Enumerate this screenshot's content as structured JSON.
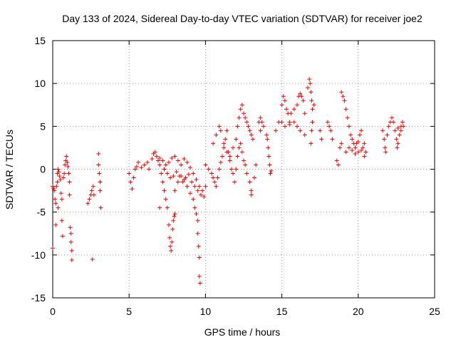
{
  "chart_data": {
    "type": "scatter",
    "title": "Day 133 of 2024, Sidereal Day-to-day VTEC variation (SDTVAR) for receiver joe2",
    "xlabel": "GPS time / hours",
    "ylabel": "SDTVAR / TECUs",
    "xlim": [
      0,
      25
    ],
    "ylim": [
      -15,
      15
    ],
    "xticks": [
      "0",
      "5",
      "10",
      "15",
      "20",
      "25"
    ],
    "yticks": [
      "-15",
      "-10",
      "-5",
      "0",
      "5",
      "10",
      "15"
    ],
    "grid": true,
    "marker": "+",
    "color": "#ff0000",
    "series": [
      {
        "name": "SDTVAR",
        "points": [
          [
            0.0,
            -2.0
          ],
          [
            0.05,
            -2.2
          ],
          [
            0.1,
            -2.5
          ],
          [
            0.15,
            -3.5
          ],
          [
            0.2,
            -4.0
          ],
          [
            0.2,
            -6.5
          ],
          [
            0.25,
            -2.0
          ],
          [
            0.3,
            -1.5
          ],
          [
            0.3,
            -0.5
          ],
          [
            0.35,
            0.0
          ],
          [
            0.35,
            -4.5
          ],
          [
            0.4,
            -0.3
          ],
          [
            0.45,
            -0.8
          ],
          [
            0.5,
            -1.2
          ],
          [
            0.55,
            -2.8
          ],
          [
            0.6,
            -3.5
          ],
          [
            0.6,
            -6.0
          ],
          [
            0.65,
            -7.8
          ],
          [
            0.7,
            -1.0
          ],
          [
            0.75,
            -0.5
          ],
          [
            0.8,
            0.5
          ],
          [
            0.85,
            1.0
          ],
          [
            0.9,
            1.5
          ],
          [
            0.95,
            0.8
          ],
          [
            1.0,
            0.3
          ],
          [
            1.05,
            -0.5
          ],
          [
            1.1,
            -1.5
          ],
          [
            1.1,
            -3.0
          ],
          [
            1.15,
            -6.8
          ],
          [
            1.2,
            -7.5
          ],
          [
            1.2,
            -8.5
          ],
          [
            1.25,
            -9.5
          ],
          [
            1.25,
            -10.6
          ],
          [
            0.0,
            -9.2
          ],
          [
            2.3,
            -4.0
          ],
          [
            2.4,
            -3.5
          ],
          [
            2.5,
            -3.0
          ],
          [
            2.55,
            -2.5
          ],
          [
            2.6,
            -10.5
          ],
          [
            2.65,
            -2.0
          ],
          [
            2.7,
            -3.0
          ],
          [
            3.0,
            1.8
          ],
          [
            3.0,
            0.5
          ],
          [
            3.05,
            -0.5
          ],
          [
            3.1,
            -1.5
          ],
          [
            3.1,
            -2.5
          ],
          [
            3.15,
            -4.5
          ],
          [
            5.0,
            -0.5
          ],
          [
            5.1,
            -1.5
          ],
          [
            5.2,
            -2.3
          ],
          [
            5.3,
            -1.0
          ],
          [
            5.4,
            0.0
          ],
          [
            5.5,
            0.3
          ],
          [
            5.6,
            0.8
          ],
          [
            5.8,
            0.2
          ],
          [
            6.0,
            0.5
          ],
          [
            6.2,
            0.8
          ],
          [
            6.3,
            0.0
          ],
          [
            6.5,
            1.2
          ],
          [
            6.6,
            1.8
          ],
          [
            6.7,
            2.0
          ],
          [
            6.8,
            1.5
          ],
          [
            6.9,
            1.0
          ],
          [
            7.0,
            0.5
          ],
          [
            7.1,
            -0.5
          ],
          [
            7.2,
            -1.5
          ],
          [
            7.3,
            -2.5
          ],
          [
            7.4,
            -3.5
          ],
          [
            7.5,
            -4.5
          ],
          [
            7.6,
            -6.5
          ],
          [
            7.65,
            -8.0
          ],
          [
            7.7,
            -9.0
          ],
          [
            7.75,
            -9.5
          ],
          [
            7.8,
            -8.5
          ],
          [
            7.85,
            -7.0
          ],
          [
            7.9,
            -6.0
          ],
          [
            7.95,
            -5.5
          ],
          [
            8.0,
            -5.2
          ],
          [
            7.0,
            -4.5
          ],
          [
            7.0,
            1.3
          ],
          [
            7.2,
            1.0
          ],
          [
            7.4,
            0.5
          ],
          [
            7.6,
            0.8
          ],
          [
            7.8,
            1.3
          ],
          [
            8.0,
            1.5
          ],
          [
            8.2,
            1.0
          ],
          [
            8.4,
            0.5
          ],
          [
            8.6,
            1.2
          ],
          [
            8.8,
            0.8
          ],
          [
            9.0,
            0.2
          ],
          [
            9.2,
            -0.5
          ],
          [
            9.4,
            -1.2
          ],
          [
            9.6,
            -2.0
          ],
          [
            9.8,
            -2.5
          ],
          [
            8.0,
            -2.5
          ],
          [
            8.2,
            -1.5
          ],
          [
            8.4,
            -0.8
          ],
          [
            8.6,
            -1.2
          ],
          [
            8.8,
            -2.0
          ],
          [
            9.0,
            -2.8
          ],
          [
            9.2,
            -3.5
          ],
          [
            9.3,
            -4.5
          ],
          [
            9.4,
            -5.2
          ],
          [
            9.5,
            -6.0
          ],
          [
            9.5,
            -7.5
          ],
          [
            9.55,
            -9.0
          ],
          [
            9.6,
            -10.3
          ],
          [
            9.6,
            -12.5
          ],
          [
            9.65,
            -13.3
          ],
          [
            7.3,
            0.0
          ],
          [
            7.5,
            -0.5
          ],
          [
            7.7,
            -1.0
          ],
          [
            7.9,
            -0.8
          ],
          [
            8.1,
            -0.3
          ],
          [
            8.3,
            -0.8
          ],
          [
            8.5,
            -1.5
          ],
          [
            8.7,
            -1.0
          ],
          [
            8.9,
            -0.6
          ],
          [
            9.1,
            -1.5
          ],
          [
            9.3,
            -2.0
          ],
          [
            9.5,
            -2.5
          ],
          [
            9.7,
            -3.0
          ],
          [
            9.9,
            -3.2
          ],
          [
            10.0,
            -2.0
          ],
          [
            10.0,
            0.5
          ],
          [
            10.2,
            0.0
          ],
          [
            10.4,
            -0.5
          ],
          [
            10.5,
            -1.0
          ],
          [
            10.6,
            -1.5
          ],
          [
            10.7,
            -2.0
          ],
          [
            10.8,
            -1.0
          ],
          [
            10.9,
            0.0
          ],
          [
            11.0,
            0.8
          ],
          [
            11.1,
            1.5
          ],
          [
            11.2,
            2.5
          ],
          [
            11.3,
            3.5
          ],
          [
            11.4,
            4.5
          ],
          [
            11.5,
            2.0
          ],
          [
            11.6,
            1.0
          ],
          [
            11.7,
            0.0
          ],
          [
            11.8,
            -0.5
          ],
          [
            11.9,
            -1.5
          ],
          [
            10.5,
            3.0
          ],
          [
            10.7,
            4.0
          ],
          [
            10.9,
            5.0
          ],
          [
            11.0,
            4.5
          ],
          [
            11.2,
            3.0
          ],
          [
            11.4,
            2.0
          ],
          [
            11.6,
            1.5
          ],
          [
            11.8,
            2.5
          ],
          [
            12.0,
            3.5
          ],
          [
            12.1,
            5.0
          ],
          [
            12.2,
            6.0
          ],
          [
            12.3,
            7.0
          ],
          [
            12.4,
            7.5
          ],
          [
            12.5,
            6.5
          ],
          [
            12.6,
            6.0
          ],
          [
            12.7,
            5.5
          ],
          [
            12.8,
            5.0
          ],
          [
            12.9,
            4.5
          ],
          [
            13.0,
            4.0
          ],
          [
            13.1,
            3.5
          ],
          [
            12.0,
            0.0
          ],
          [
            12.1,
            1.5
          ],
          [
            12.2,
            2.5
          ],
          [
            12.3,
            3.0
          ],
          [
            12.4,
            2.0
          ],
          [
            12.5,
            1.0
          ],
          [
            12.6,
            0.5
          ],
          [
            12.7,
            -0.5
          ],
          [
            12.9,
            -1.5
          ],
          [
            13.0,
            -2.5
          ],
          [
            13.0,
            -3.0
          ],
          [
            13.2,
            -1.0
          ],
          [
            13.3,
            0.5
          ],
          [
            13.5,
            5.5
          ],
          [
            13.6,
            6.0
          ],
          [
            13.7,
            5.5
          ],
          [
            13.8,
            5.0
          ],
          [
            13.6,
            4.5
          ],
          [
            14.0,
            4.0
          ],
          [
            14.05,
            3.5
          ],
          [
            14.1,
            2.5
          ],
          [
            14.15,
            1.5
          ],
          [
            14.2,
            0.5
          ],
          [
            14.25,
            -0.5
          ],
          [
            14.3,
            -0.2
          ],
          [
            14.6,
            4.5
          ],
          [
            14.8,
            5.5
          ],
          [
            15.0,
            7.5
          ],
          [
            15.1,
            8.5
          ],
          [
            15.2,
            8.0
          ],
          [
            15.3,
            7.0
          ],
          [
            15.4,
            6.5
          ],
          [
            15.5,
            5.5
          ],
          [
            15.6,
            6.5
          ],
          [
            15.8,
            7.0
          ],
          [
            16.0,
            7.5
          ],
          [
            16.1,
            8.5
          ],
          [
            16.2,
            8.8
          ],
          [
            16.3,
            8.5
          ],
          [
            16.4,
            8.0
          ],
          [
            15.0,
            5.5
          ],
          [
            15.2,
            5.0
          ],
          [
            15.5,
            5.2
          ],
          [
            15.8,
            5.5
          ],
          [
            16.0,
            5.0
          ],
          [
            16.2,
            4.5
          ],
          [
            16.5,
            4.0
          ],
          [
            16.5,
            6.5
          ],
          [
            16.7,
            9.5
          ],
          [
            16.8,
            10.5
          ],
          [
            16.85,
            10.0
          ],
          [
            16.9,
            9.0
          ],
          [
            16.95,
            8.0
          ],
          [
            17.0,
            7.0
          ],
          [
            17.0,
            5.5
          ],
          [
            16.95,
            4.5
          ],
          [
            16.9,
            3.0
          ],
          [
            17.1,
            7.5
          ],
          [
            17.5,
            4.5
          ],
          [
            17.6,
            3.5
          ],
          [
            18.0,
            5.5
          ],
          [
            18.1,
            5.0
          ],
          [
            18.2,
            4.5
          ],
          [
            18.3,
            3.5
          ],
          [
            18.6,
            1.0
          ],
          [
            18.7,
            0.5
          ],
          [
            18.8,
            2.5
          ],
          [
            18.9,
            3.0
          ],
          [
            18.9,
            9.0
          ],
          [
            19.0,
            8.5
          ],
          [
            19.1,
            8.0
          ],
          [
            19.2,
            7.0
          ],
          [
            19.3,
            6.0
          ],
          [
            19.4,
            5.0
          ],
          [
            19.5,
            4.0
          ],
          [
            19.6,
            3.5
          ],
          [
            19.7,
            3.0
          ],
          [
            19.8,
            2.5
          ],
          [
            19.9,
            3.0
          ],
          [
            20.0,
            3.2
          ],
          [
            20.1,
            4.0
          ],
          [
            20.2,
            4.5
          ],
          [
            20.3,
            2.5
          ],
          [
            20.4,
            1.5
          ],
          [
            20.5,
            2.0
          ],
          [
            19.2,
            2.0
          ],
          [
            19.4,
            2.5
          ],
          [
            19.6,
            2.2
          ],
          [
            19.8,
            1.8
          ],
          [
            20.0,
            2.0
          ],
          [
            20.2,
            2.2
          ],
          [
            20.4,
            3.0
          ],
          [
            21.6,
            4.5
          ],
          [
            21.7,
            3.5
          ],
          [
            21.75,
            2.5
          ],
          [
            21.8,
            2.0
          ],
          [
            21.9,
            4.0
          ],
          [
            22.0,
            5.0
          ],
          [
            22.1,
            5.5
          ],
          [
            22.2,
            6.0
          ],
          [
            22.3,
            5.5
          ],
          [
            22.4,
            4.5
          ],
          [
            22.5,
            3.5
          ],
          [
            22.55,
            2.5
          ],
          [
            22.6,
            3.0
          ],
          [
            22.7,
            4.0
          ],
          [
            22.8,
            5.0
          ],
          [
            22.9,
            5.5
          ],
          [
            22.95,
            5.0
          ],
          [
            22.8,
            4.5
          ],
          [
            22.6,
            4.8
          ]
        ]
      }
    ]
  }
}
